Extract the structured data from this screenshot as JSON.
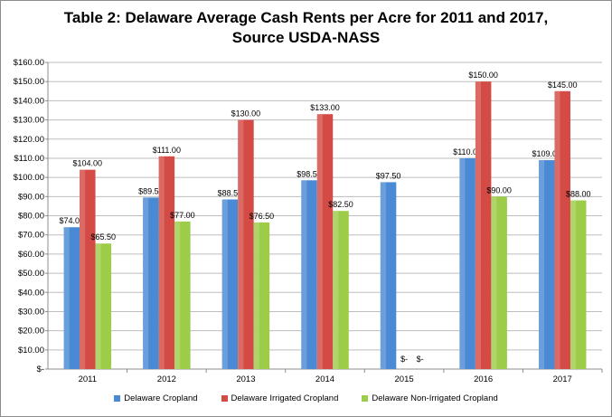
{
  "chart_data": {
    "type": "bar",
    "title": "Table 2: Delaware Average Cash Rents per Acre for 2011 and 2017,",
    "subtitle": "Source USDA-NASS",
    "categories": [
      "2011",
      "2012",
      "2013",
      "2014",
      "2015",
      "2016",
      "2017"
    ],
    "series": [
      {
        "name": "Delaware Cropland",
        "color": "#4a8ad4",
        "values": [
          74.0,
          89.5,
          88.5,
          98.5,
          97.5,
          110.0,
          109.0
        ],
        "labels": [
          "$74.00",
          "$89.50",
          "$88.50",
          "$98.50",
          "$97.50",
          "$110.00",
          "$109.00"
        ]
      },
      {
        "name": "Delaware Irrigated Cropland",
        "color": "#d44a44",
        "values": [
          104.0,
          111.0,
          130.0,
          133.0,
          0,
          150.0,
          145.0
        ],
        "labels": [
          "$104.00",
          "$111.00",
          "$130.00",
          "$133.00",
          "$-",
          "$150.00",
          "$145.00"
        ]
      },
      {
        "name": "Delaware Non-Irrigated Cropland",
        "color": "#9ccc48",
        "values": [
          65.5,
          77.0,
          76.5,
          82.5,
          0,
          90.0,
          88.0
        ],
        "labels": [
          "$65.50",
          "$77.00",
          "$76.50",
          "$82.50",
          "$-",
          "$90.00",
          "$88.00"
        ]
      }
    ],
    "ylim": [
      0,
      160
    ],
    "yticks": [
      0,
      10,
      20,
      30,
      40,
      50,
      60,
      70,
      80,
      90,
      100,
      110,
      120,
      130,
      140,
      150,
      160
    ],
    "ytick_labels": [
      "$-",
      "$10.00",
      "$20.00",
      "$30.00",
      "$40.00",
      "$50.00",
      "$60.00",
      "$70.00",
      "$80.00",
      "$90.00",
      "$100.00",
      "$110.00",
      "$120.00",
      "$130.00",
      "$140.00",
      "$150.00",
      "$160.00"
    ],
    "xlabel": "",
    "ylabel": "",
    "grid": true,
    "legend_position": "bottom"
  }
}
